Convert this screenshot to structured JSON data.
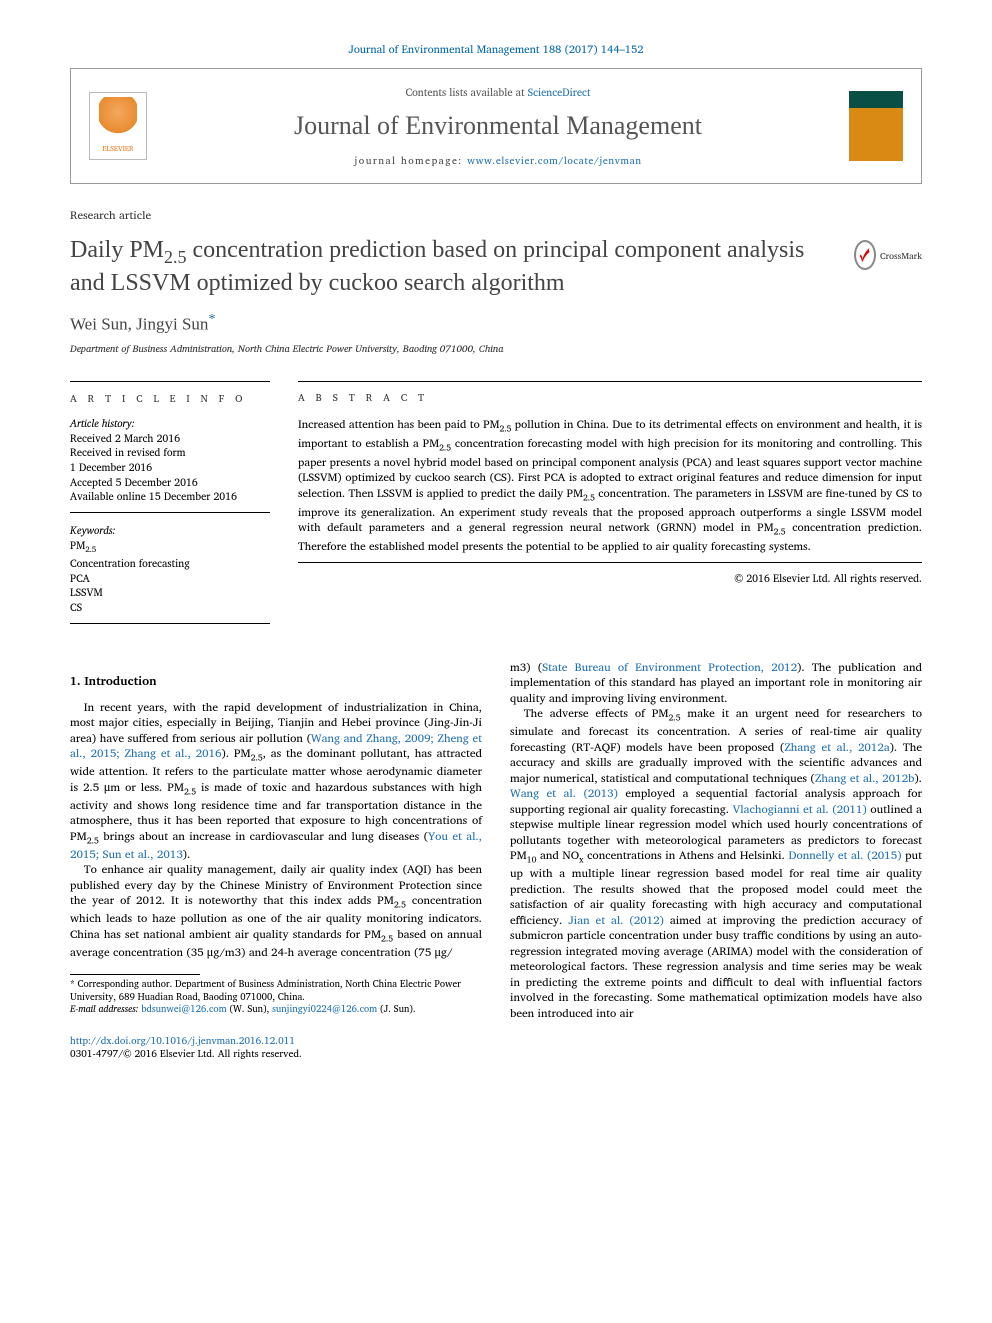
{
  "citation_line": "Journal of Environmental Management 188 (2017) 144–152",
  "header": {
    "contents_prefix": "Contents lists available at ",
    "contents_link": "ScienceDirect",
    "journal_name": "Journal of Environmental Management",
    "homepage_prefix": "journal homepage: ",
    "homepage_url": "www.elsevier.com/locate/jenvman",
    "publisher_word": "ELSEVIER"
  },
  "article_type": "Research article",
  "title": "Daily PM2.5 concentration prediction based on principal component analysis and LSSVM optimized by cuckoo search algorithm",
  "crossmark_label": "CrossMark",
  "authors_line": "Wei Sun, Jingyi Sun",
  "corresponding_marker": "*",
  "affiliation": "Department of Business Administration, North China Electric Power University, Baoding 071000, China",
  "article_info": {
    "heading": "A R T I C L E   I N F O",
    "history_label": "Article history:",
    "history": [
      "Received 2 March 2016",
      "Received in revised form",
      "1 December 2016",
      "Accepted 5 December 2016",
      "Available online 15 December 2016"
    ],
    "keywords_label": "Keywords:",
    "keywords": [
      "PM2.5",
      "Concentration forecasting",
      "PCA",
      "LSSVM",
      "CS"
    ]
  },
  "abstract": {
    "heading": "A B S T R A C T",
    "text": "Increased attention has been paid to PM2.5 pollution in China. Due to its detrimental effects on environment and health, it is important to establish a PM2.5 concentration forecasting model with high precision for its monitoring and controlling. This paper presents a novel hybrid model based on principal component analysis (PCA) and least squares support vector machine (LSSVM) optimized by cuckoo search (CS). First PCA is adopted to extract original features and reduce dimension for input selection. Then LSSVM is applied to predict the daily PM2.5 concentration. The parameters in LSSVM are fine-tuned by CS to improve its generalization. An experiment study reveals that the proposed approach outperforms a single LSSVM model with default parameters and a general regression neural network (GRNN) model in PM2.5 concentration prediction. Therefore the established model presents the potential to be applied to air quality forecasting systems.",
    "copyright": "© 2016 Elsevier Ltd. All rights reserved."
  },
  "section1": {
    "heading": "1. Introduction",
    "p1_a": "In recent years, with the rapid development of industrialization in China, most major cities, especially in Beijing, Tianjin and Hebei province (Jing-Jin-Ji area) have suffered from serious air pollution (",
    "p1_link1": "Wang and Zhang, 2009; Zheng et al., 2015; Zhang et al., 2016",
    "p1_b": "). PM2.5, as the dominant pollutant, has attracted wide attention. It refers to the particulate matter whose aerodynamic diameter is 2.5 μm or less. PM2.5 is made of toxic and hazardous substances with high activity and shows long residence time and far transportation distance in the atmosphere, thus it has been reported that exposure to high concentrations of PM2.5 brings about an increase in cardiovascular and lung diseases (",
    "p1_link2": "You et al., 2015; Sun et al., 2013",
    "p1_c": ").",
    "p2_a": "To enhance air quality management, daily air quality index (AQI) has been published every day by the Chinese Ministry of Environment Protection since the year of 2012. It is noteworthy that this index adds PM2.5 concentration which leads to haze pollution as one of the air quality monitoring indicators. China has set national ambient air quality standards for PM2.5 based on annual average concentration (35 μg/m3) and 24-h average concentration (75 μg/",
    "p2_top_a": "m3) (",
    "p2_top_link": "State Bureau of Environment Protection, 2012",
    "p2_top_b": "). The publication and implementation of this standard has played an important role in monitoring air quality and improving living environment.",
    "p3_a": "The adverse effects of PM2.5 make it an urgent need for researchers to simulate and forecast its concentration. A series of real-time air quality forecasting (RT-AQF) models have been proposed (",
    "p3_link1": "Zhang et al., 2012a",
    "p3_b": "). The accuracy and skills are gradually improved with the scientific advances and major numerical, statistical and computational techniques (",
    "p3_link2": "Zhang et al., 2012b",
    "p3_c": "). ",
    "p3_link3": "Wang et al. (2013)",
    "p3_d": " employed a sequential factorial analysis approach for supporting regional air quality forecasting. ",
    "p3_link4": "Vlachogianni et al. (2011)",
    "p3_e": " outlined a stepwise multiple linear regression model which used hourly concentrations of pollutants together with meteorological parameters as predictors to forecast PM10 and NOx concentrations in Athens and Helsinki. ",
    "p3_link5": "Donnelly et al. (2015)",
    "p3_f": " put up with a multiple linear regression based model for real time air quality prediction. The results showed that the proposed model could meet the satisfaction of air quality forecasting with high accuracy and computational efficiency. ",
    "p3_link6": "Jian et al. (2012)",
    "p3_g": " aimed at improving the prediction accuracy of submicron particle concentration under busy traffic conditions by using an auto-regression integrated moving average (ARIMA) model with the consideration of meteorological factors. These regression analysis and time series may be weak in predicting the extreme points and difficult to deal with influential factors involved in the forecasting. Some mathematical optimization models have also been introduced into air"
  },
  "footnote": {
    "corr_text": "* Corresponding author. Department of Business Administration, North China Electric Power University, 689 Huadian Road, Baoding 071000, China.",
    "email_label": "E-mail addresses:",
    "email1": "bdsunwei@126.com",
    "email1_who": " (W. Sun), ",
    "email2": "sunjingyi0224@126.com",
    "email2_who": " (J. Sun)."
  },
  "bottom": {
    "doi": "http://dx.doi.org/10.1016/j.jenvman.2016.12.011",
    "issn_line": "0301-4797/© 2016 Elsevier Ltd. All rights reserved."
  },
  "colors": {
    "link": "#1f6fb2",
    "title_gray": "#444444",
    "orange": "#e67817"
  }
}
